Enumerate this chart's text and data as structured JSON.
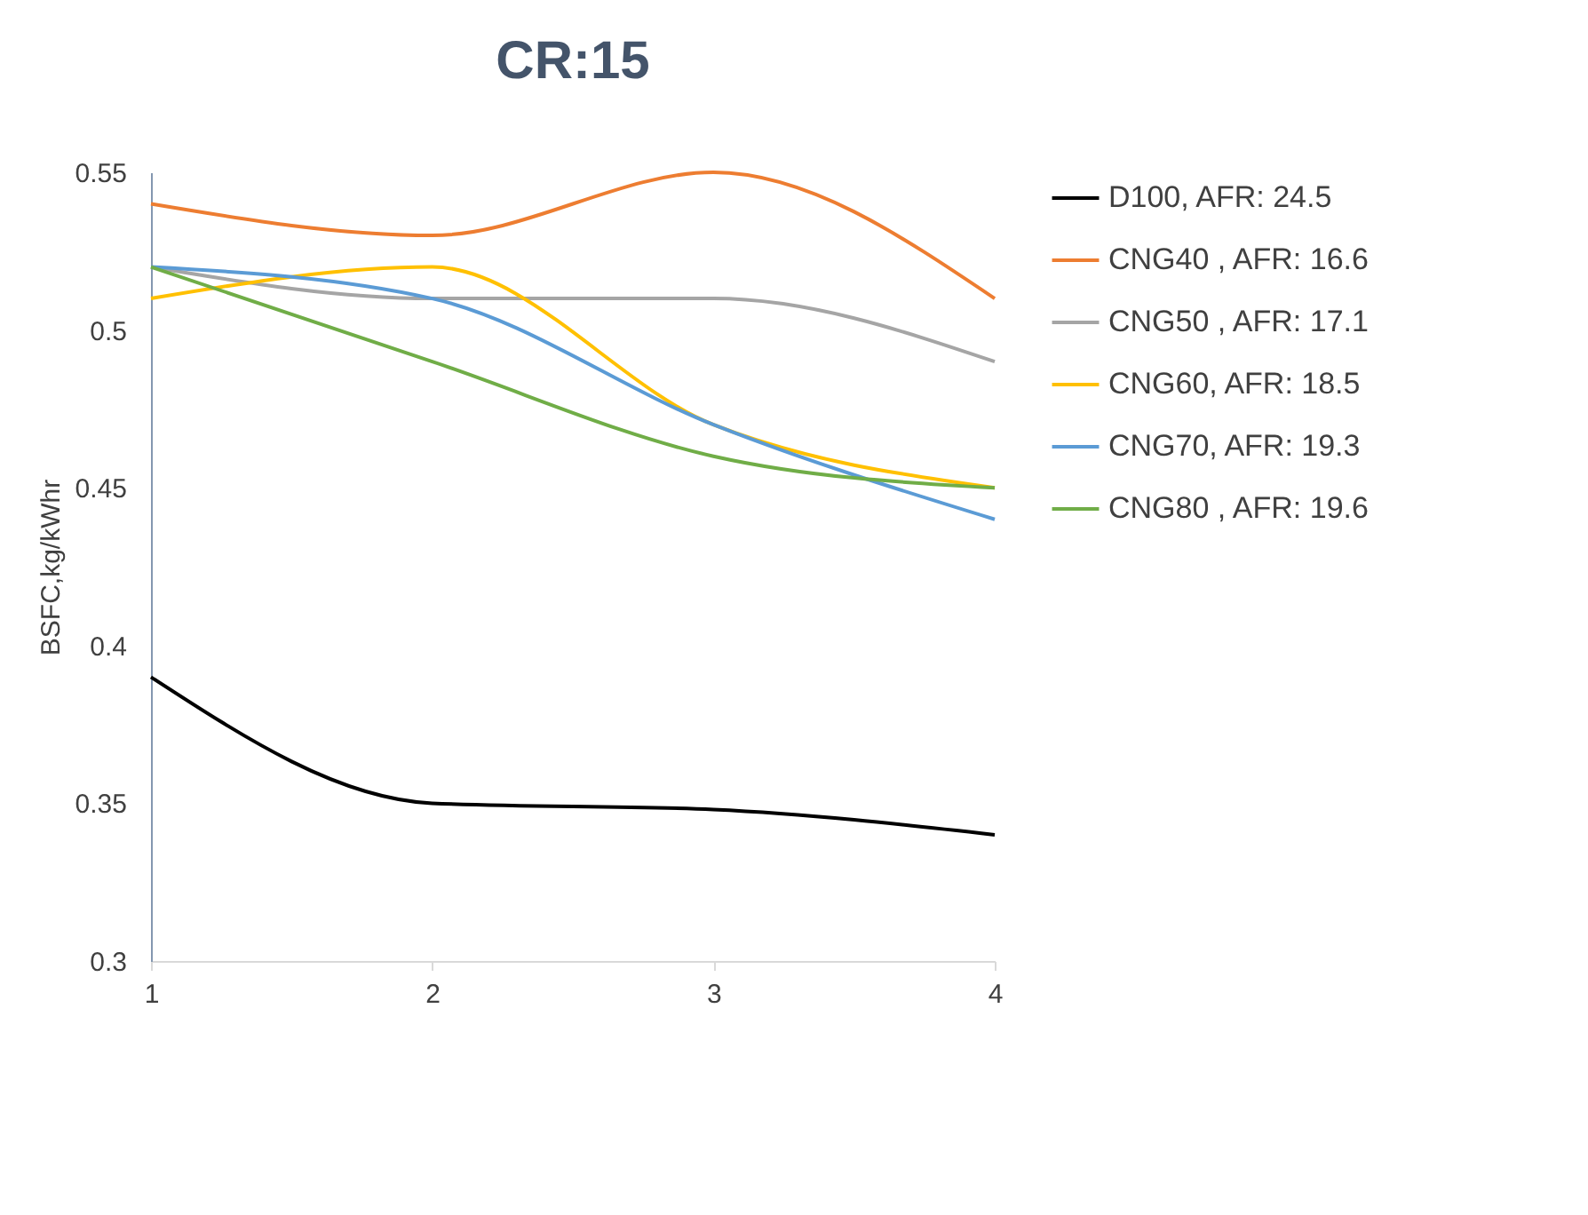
{
  "chart_data": {
    "type": "line",
    "title": "CR:15",
    "ylabel": "BSFC,kg/kWhr",
    "x": [
      1,
      2,
      3,
      4
    ],
    "xlim": [
      1,
      4
    ],
    "xticks": [
      1,
      2,
      3,
      4
    ],
    "ylim": [
      0.3,
      0.55
    ],
    "yticks": [
      0.3,
      0.35,
      0.4,
      0.45,
      0.5,
      0.55
    ],
    "grid": false,
    "legend": "right",
    "marker": "none",
    "line_style": "solid",
    "series": [
      {
        "name": "D100, AFR: 24.5",
        "color": "#000000",
        "values": [
          0.39,
          0.35,
          0.348,
          0.34
        ]
      },
      {
        "name": "CNG40 , AFR: 16.6",
        "color": "#ed7d31",
        "values": [
          0.54,
          0.53,
          0.55,
          0.51
        ]
      },
      {
        "name": "CNG50 , AFR: 17.1",
        "color": "#a5a5a5",
        "values": [
          0.52,
          0.51,
          0.51,
          0.49
        ]
      },
      {
        "name": "CNG60, AFR: 18.5",
        "color": "#ffc000",
        "values": [
          0.51,
          0.52,
          0.47,
          0.45
        ]
      },
      {
        "name": "CNG70, AFR: 19.3",
        "color": "#5b9bd5",
        "values": [
          0.52,
          0.51,
          0.47,
          0.44
        ]
      },
      {
        "name": "CNG80 , AFR: 19.6",
        "color": "#70ad47",
        "values": [
          0.52,
          0.49,
          0.46,
          0.45
        ]
      }
    ]
  }
}
